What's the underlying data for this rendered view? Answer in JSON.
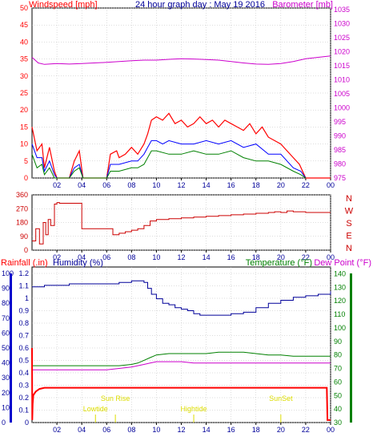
{
  "title": "24 hour graph day : May 19 2016",
  "time_ticks": [
    "02",
    "04",
    "06",
    "08",
    "10",
    "12",
    "14",
    "16",
    "18",
    "20",
    "22",
    "00"
  ],
  "colors": {
    "windspeed": "#ff0000",
    "avg_wind": "#0000ff",
    "gust_min": "#008000",
    "barometer": "#cc00cc",
    "direction": "#cc0000",
    "rainfall": "#ff0000",
    "humidity": "#000099",
    "temperature": "#008000",
    "dewpoint": "#cc00cc",
    "sun": "#dddd00",
    "panel_bg": "#ffffff",
    "grid": "#bbbbbb"
  },
  "chart_data": [
    {
      "type": "line",
      "label_left": "Windspeed [mph]",
      "label_right": "Barometer [mb]",
      "y_ticks": [
        "0",
        "5",
        "10",
        "15",
        "20",
        "25",
        "30",
        "35",
        "40",
        "45",
        "50"
      ],
      "y2_ticks": [
        "975",
        "980",
        "985",
        "990",
        "995",
        "1000",
        "1005",
        "1010",
        "1015",
        "1020",
        "1025",
        "1030",
        "1035"
      ],
      "ylim": [
        0,
        50
      ],
      "y2lim": [
        975,
        1035
      ],
      "series": [
        {
          "key": "gust",
          "x": [
            0.0,
            0.4,
            0.8,
            1.0,
            1.4,
            1.8,
            2.0,
            2.3,
            3.0,
            3.4,
            3.8,
            4.1,
            4.5,
            6.0,
            6.3,
            6.8,
            7.0,
            7.5,
            8.0,
            8.5,
            9.0,
            9.3,
            9.6,
            10.0,
            10.5,
            11.0,
            11.5,
            12.0,
            12.5,
            13.0,
            13.5,
            14.0,
            14.5,
            15.0,
            15.5,
            16.0,
            16.5,
            17.0,
            17.5,
            18.0,
            18.5,
            19.0,
            19.5,
            20.0,
            20.5,
            21.0,
            21.5,
            22.0,
            22.5,
            23.0,
            24.0
          ],
          "values": [
            15,
            8,
            10,
            3,
            9,
            2,
            0,
            0,
            0,
            5,
            8,
            0,
            0,
            0,
            7,
            8,
            6,
            7,
            9,
            7,
            10,
            13,
            17,
            18,
            17,
            19,
            16,
            17,
            15,
            16,
            18,
            16,
            17,
            15,
            17,
            16,
            15,
            14,
            16,
            13,
            15,
            12,
            11,
            10,
            8,
            6,
            4,
            0,
            0,
            0,
            0
          ]
        },
        {
          "key": "avg",
          "x": [
            0.0,
            0.4,
            0.8,
            1.0,
            1.4,
            1.8,
            2.0,
            3.0,
            3.4,
            3.8,
            4.1,
            6.0,
            6.3,
            7.0,
            8.0,
            8.5,
            9.0,
            9.3,
            9.6,
            10.0,
            10.5,
            11.0,
            12.0,
            13.0,
            14.0,
            15.0,
            16.0,
            17.0,
            18.0,
            19.0,
            20.0,
            21.0,
            21.6,
            22.0
          ],
          "values": [
            10,
            6,
            6,
            2,
            5,
            1,
            0,
            0,
            3,
            4,
            0,
            0,
            4,
            4,
            5,
            5,
            7,
            9,
            11,
            11,
            10,
            11,
            10,
            10,
            11,
            10,
            11,
            9,
            10,
            7,
            7,
            3,
            2,
            0
          ]
        },
        {
          "key": "min",
          "x": [
            0.0,
            0.4,
            0.8,
            1.0,
            1.4,
            1.8,
            2.0,
            3.0,
            3.4,
            3.8,
            4.1,
            6.0,
            6.3,
            7.0,
            8.0,
            8.5,
            9.0,
            9.3,
            9.6,
            10.0,
            11.0,
            12.0,
            13.0,
            14.0,
            15.0,
            16.0,
            17.0,
            18.0,
            19.0,
            20.0,
            21.0,
            21.6,
            22.0
          ],
          "values": [
            7,
            3,
            4,
            1,
            3,
            0,
            0,
            0,
            2,
            3,
            0,
            0,
            2,
            2,
            3,
            3,
            4,
            6,
            8,
            8,
            7,
            7,
            8,
            7,
            7,
            8,
            6,
            5,
            5,
            4,
            2,
            1,
            0
          ]
        },
        {
          "key": "pressure",
          "x": [
            0,
            0.5,
            1,
            2,
            3,
            4,
            5,
            6,
            7,
            8,
            9,
            10,
            11,
            12,
            13,
            14,
            15,
            16,
            17,
            18,
            19,
            20,
            21,
            22,
            23,
            24
          ],
          "values": [
            1018,
            1016,
            1015.5,
            1015.8,
            1015.6,
            1015.8,
            1016,
            1016.2,
            1016.5,
            1016.8,
            1017,
            1017,
            1017.3,
            1017.5,
            1017.4,
            1017.2,
            1017,
            1016.5,
            1016,
            1015.6,
            1015.5,
            1015.8,
            1016.5,
            1017.5,
            1018,
            1018.5
          ]
        }
      ]
    },
    {
      "type": "line",
      "y_ticks": [
        "0",
        "90",
        "180",
        "270",
        "360"
      ],
      "direction_labels": [
        "N",
        "W",
        "S",
        "E",
        "N"
      ],
      "ylim": [
        0,
        360
      ],
      "series": [
        {
          "key": "direction",
          "x": [
            0.0,
            0.3,
            0.6,
            0.9,
            1.1,
            1.3,
            1.5,
            1.8,
            2.0,
            2.2,
            2.6,
            3.0,
            3.8,
            4.0,
            4.4,
            5.0,
            6.0,
            6.5,
            7.0,
            7.5,
            8.0,
            8.5,
            9.0,
            9.5,
            10.0,
            11.0,
            12.0,
            13.0,
            14.0,
            15.0,
            16.0,
            17.0,
            18.0,
            19.0,
            19.5,
            20.0,
            20.5,
            21.0,
            22.0,
            23.0,
            24.0
          ],
          "values": [
            60,
            140,
            40,
            180,
            100,
            200,
            160,
            300,
            310,
            305,
            305,
            305,
            305,
            140,
            140,
            140,
            140,
            100,
            110,
            120,
            130,
            140,
            160,
            190,
            200,
            205,
            210,
            215,
            220,
            225,
            230,
            235,
            240,
            245,
            250,
            245,
            255,
            250,
            245,
            245,
            245
          ]
        }
      ]
    },
    {
      "type": "line",
      "label_rain": "Rainfall (.in)",
      "label_humidity": "Humidity (%)",
      "label_temp": "Temperature (°F)",
      "label_dew": "Dew Point (°F)",
      "humidity_ticks": [
        "0",
        "0.1",
        "0.2",
        "0.3",
        "0.4",
        "0.5",
        "0.6",
        "0.7",
        "0.8",
        "0.9",
        "1",
        "1.1",
        "1.2"
      ],
      "rain_ticks": [
        "0",
        "10",
        "20",
        "30",
        "40",
        "50",
        "60",
        "70",
        "80",
        "90",
        "100"
      ],
      "temp_ticks": [
        "30",
        "40",
        "50",
        "60",
        "70",
        "80",
        "90",
        "100",
        "110",
        "120",
        "130",
        "140"
      ],
      "rain_lim": [
        0,
        1.2
      ],
      "humidity_lim": [
        0,
        100
      ],
      "temp_lim": [
        30,
        145
      ],
      "markers": [
        {
          "label": "Sun Rise",
          "x": 6.7
        },
        {
          "label": "Lowtide",
          "x": 5.1
        },
        {
          "label": "Hightide",
          "x": 13.0
        },
        {
          "label": "SunSet",
          "x": 20.0
        }
      ],
      "series": [
        {
          "key": "rain",
          "x": [
            0.0,
            0.02,
            0.05,
            0.1,
            0.3,
            0.6,
            1.0,
            2.0,
            10.0,
            20.0,
            23.0,
            23.7,
            23.75,
            24.0
          ],
          "values": [
            0.6,
            0.02,
            0.15,
            0.22,
            0.25,
            0.27,
            0.28,
            0.28,
            0.28,
            0.28,
            0.28,
            0.28,
            0.02,
            0.02
          ]
        },
        {
          "key": "humidity",
          "x": [
            0,
            1,
            2,
            3,
            4,
            5,
            6,
            7,
            7.5,
            8,
            8.5,
            9,
            9.3,
            9.6,
            10,
            10.5,
            11,
            11.5,
            12,
            12.5,
            13,
            13.5,
            14,
            15,
            16,
            17,
            18,
            19,
            20,
            21,
            22,
            23,
            24
          ],
          "values": [
            91,
            92,
            92,
            93,
            93,
            93,
            93,
            94,
            94,
            95,
            95,
            94,
            90,
            86,
            83,
            80,
            79,
            77,
            76,
            75,
            73,
            72,
            72,
            72,
            73,
            74,
            77,
            80,
            82,
            84,
            85,
            86,
            88
          ]
        },
        {
          "key": "temp",
          "x": [
            0,
            1,
            2,
            3,
            4,
            5,
            6,
            7,
            8,
            8.5,
            9,
            9.5,
            10,
            11,
            12,
            13,
            14,
            15,
            16,
            17,
            18,
            19,
            20,
            21,
            22,
            23,
            24
          ],
          "values": [
            72,
            72,
            72,
            72,
            72,
            72,
            72,
            72,
            73,
            74,
            76,
            78,
            80,
            81,
            81,
            81,
            81,
            82,
            82,
            82,
            81,
            80,
            80,
            79,
            79,
            79,
            79
          ]
        },
        {
          "key": "dew",
          "x": [
            0,
            1,
            2,
            3,
            4,
            5,
            6,
            7,
            8,
            8.5,
            9,
            9.5,
            10,
            11,
            12,
            13,
            14,
            15,
            16,
            17,
            18,
            19,
            20,
            21,
            22,
            23,
            24
          ],
          "values": [
            69,
            69,
            69,
            69,
            69,
            69,
            69,
            70,
            71,
            72,
            73,
            74,
            75,
            75,
            75,
            74,
            74,
            74,
            74,
            74,
            74,
            74,
            74,
            74,
            74,
            74,
            74
          ]
        }
      ]
    }
  ]
}
